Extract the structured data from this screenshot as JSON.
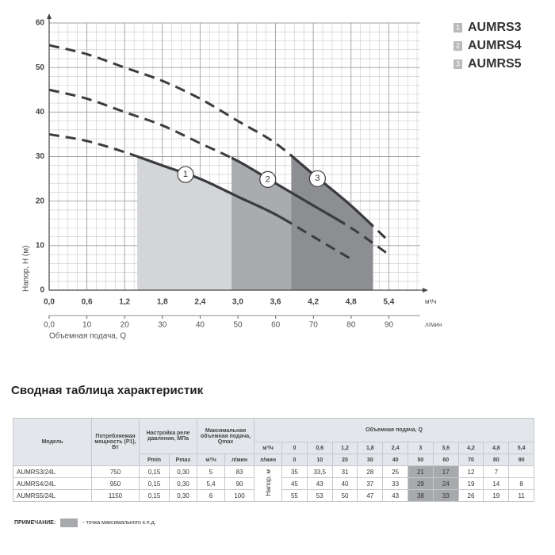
{
  "chart_data": {
    "type": "line",
    "ylabel": "Напор, Н (м)",
    "xlabel": "Объемная подача, Q",
    "xunit": "м³/ч",
    "x2unit": "л/мин",
    "x": [
      0,
      0.6,
      1.2,
      1.8,
      2.4,
      3,
      3.6,
      4.2,
      4.8,
      5.4
    ],
    "xlim": [
      0,
      5.9
    ],
    "xticks": [
      {
        "value": 0,
        "label": "0,0"
      },
      {
        "value": 0.6,
        "label": "0,6"
      },
      {
        "value": 1.2,
        "label": "1,2"
      },
      {
        "value": 1.8,
        "label": "1,8"
      },
      {
        "value": 2.4,
        "label": "2,4"
      },
      {
        "value": 3,
        "label": "3,0"
      },
      {
        "value": 3.6,
        "label": "3,6"
      },
      {
        "value": 4.2,
        "label": "4,2"
      },
      {
        "value": 4.8,
        "label": "4,8"
      },
      {
        "value": 5.4,
        "label": "5,4"
      }
    ],
    "x2lim": [
      0,
      98.3
    ],
    "x2ticks": [
      {
        "value": 0,
        "label": "0,0"
      },
      10,
      20,
      30,
      40,
      50,
      60,
      70,
      80,
      90
    ],
    "ylim": [
      0,
      60
    ],
    "yticks": [
      0,
      10,
      20,
      30,
      40,
      50,
      60
    ],
    "grid": true,
    "series": [
      {
        "name": "AUMRS3",
        "marker": "1",
        "color": "#3b3c3f",
        "fill": "#d4d5d7",
        "operating_range": [
          1.4,
          3.8
        ],
        "values": [
          35,
          33.5,
          31,
          28,
          25,
          21,
          17,
          12,
          7,
          null
        ]
      },
      {
        "name": "AUMRS4",
        "marker": "2",
        "color": "#3b3c3f",
        "fill": "#aaabae",
        "operating_range": [
          2.9,
          4.7
        ],
        "values": [
          45,
          43,
          40,
          37,
          33,
          29,
          24,
          19,
          14,
          8
        ]
      },
      {
        "name": "AUMRS5",
        "marker": "3",
        "color": "#3b3c3f",
        "fill": "#8d8e91",
        "operating_range": [
          3.85,
          5.15
        ],
        "values": [
          55,
          53,
          50,
          47,
          43,
          38,
          33,
          26,
          19,
          11
        ]
      }
    ]
  },
  "table": {
    "title": "Сводная таблица характеристик",
    "headers": {
      "model": "Модель",
      "power": "Потребляемая мощность (P1), Вт",
      "relay": "Настройка реле давления, МПа",
      "qmax": "Максимальная объемная подача, Qmax",
      "flow": "Объемная подача, Q",
      "pmin": "Pmin",
      "pmax": "Pmax",
      "qmax_m3": "м³/ч",
      "qmax_l": "л/мин",
      "unit_m3": "м³/ч",
      "unit_l": "л/мин",
      "flow_m3": [
        "0",
        "0,6",
        "1,2",
        "1,8",
        "2,4",
        "3",
        "3,6",
        "4,2",
        "4,8",
        "5,4"
      ],
      "flow_l": [
        "0",
        "10",
        "20",
        "30",
        "40",
        "50",
        "60",
        "70",
        "80",
        "90"
      ]
    },
    "head_label": "Напор, м",
    "highlight_columns": [
      5,
      6
    ],
    "rows": [
      {
        "model": "AUMRS3/24L",
        "cells": [
          "750",
          "0,15",
          "0,30",
          "5",
          "83"
        ],
        "heads": [
          "35",
          "33,5",
          "31",
          "28",
          "25",
          "21",
          "17",
          "12",
          "7",
          null
        ]
      },
      {
        "model": "AUMRS4/24L",
        "cells": [
          "950",
          "0,15",
          "0,30",
          "5,4",
          "90"
        ],
        "heads": [
          "45",
          "43",
          "40",
          "37",
          "33",
          "29",
          "24",
          "19",
          "14",
          "8"
        ]
      },
      {
        "model": "AUMRS5/24L",
        "cells": [
          "1150",
          "0,15",
          "0,30",
          "6",
          "100"
        ],
        "heads": [
          "55",
          "53",
          "50",
          "47",
          "43",
          "38",
          "33",
          "26",
          "19",
          "11"
        ]
      }
    ],
    "note": {
      "label": "ПРИМЕЧАНИЕ:",
      "text": "- точка максимального к.п.д."
    }
  }
}
